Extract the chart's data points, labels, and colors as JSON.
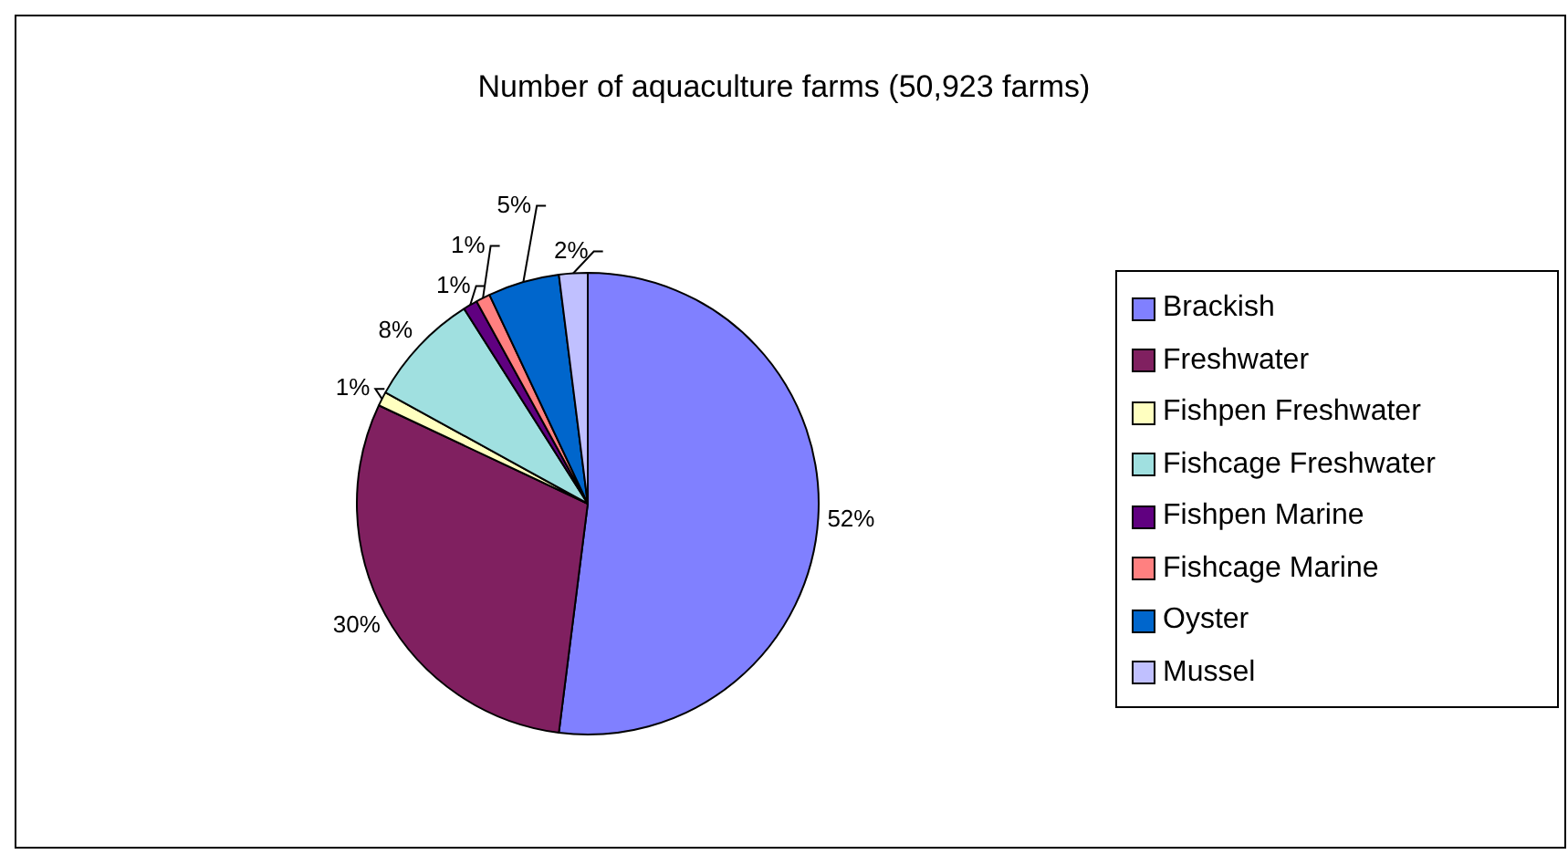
{
  "chart_data": {
    "type": "pie",
    "title": "Number of aquaculture farms (50,923 farms)",
    "categories": [
      "Brackish",
      "Freshwater",
      "Fishpen Freshwater",
      "Fishcage Freshwater",
      "Fishpen Marine",
      "Fishcage Marine",
      "Oyster",
      "Mussel"
    ],
    "values": [
      52,
      30,
      1,
      8,
      1,
      1,
      5,
      2
    ],
    "value_labels": [
      "52%",
      "30%",
      "1%",
      "8%",
      "1%",
      "1%",
      "5%",
      "2%"
    ],
    "colors": [
      "#8080ff",
      "#802060",
      "#ffffc0",
      "#a0e0e0",
      "#600080",
      "#ff8080",
      "#0066cc",
      "#c0c0ff"
    ],
    "legend": "right"
  }
}
